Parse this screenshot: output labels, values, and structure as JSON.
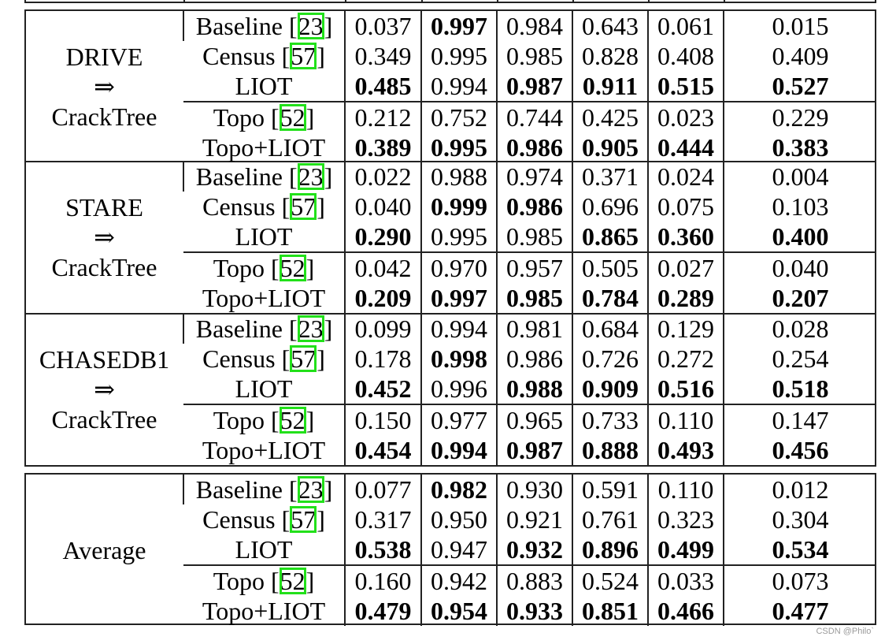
{
  "table": {
    "column_count": 8,
    "groups": [
      {
        "dataset_lines": [
          "DRIVE",
          "⇒",
          "CrackTree"
        ],
        "rows": [
          {
            "method": "Baseline",
            "cite": "23",
            "values": [
              "0.037",
              "0.997",
              "0.984",
              "0.643",
              "0.061",
              "0.015"
            ],
            "bold": [
              false,
              true,
              false,
              false,
              false,
              false
            ]
          },
          {
            "method": "Census",
            "cite": "57",
            "values": [
              "0.349",
              "0.995",
              "0.985",
              "0.828",
              "0.408",
              "0.409"
            ],
            "bold": [
              false,
              false,
              false,
              false,
              false,
              false
            ]
          },
          {
            "method": "LIOT",
            "cite": "",
            "values": [
              "0.485",
              "0.994",
              "0.987",
              "0.911",
              "0.515",
              "0.527"
            ],
            "bold": [
              true,
              false,
              true,
              true,
              true,
              true
            ]
          },
          {
            "method": "Topo",
            "cite": "52",
            "values": [
              "0.212",
              "0.752",
              "0.744",
              "0.425",
              "0.023",
              "0.229"
            ],
            "bold": [
              false,
              false,
              false,
              false,
              false,
              false
            ]
          },
          {
            "method": "Topo+LIOT",
            "cite": "",
            "values": [
              "0.389",
              "0.995",
              "0.986",
              "0.905",
              "0.444",
              "0.383"
            ],
            "bold": [
              true,
              true,
              true,
              true,
              true,
              true
            ]
          }
        ]
      },
      {
        "dataset_lines": [
          "STARE",
          "⇒",
          "CrackTree"
        ],
        "rows": [
          {
            "method": "Baseline",
            "cite": "23",
            "values": [
              "0.022",
              "0.988",
              "0.974",
              "0.371",
              "0.024",
              "0.004"
            ],
            "bold": [
              false,
              false,
              false,
              false,
              false,
              false
            ]
          },
          {
            "method": "Census",
            "cite": "57",
            "values": [
              "0.040",
              "0.999",
              "0.986",
              "0.696",
              "0.075",
              "0.103"
            ],
            "bold": [
              false,
              true,
              true,
              false,
              false,
              false
            ]
          },
          {
            "method": "LIOT",
            "cite": "",
            "values": [
              "0.290",
              "0.995",
              "0.985",
              "0.865",
              "0.360",
              "0.400"
            ],
            "bold": [
              true,
              false,
              false,
              true,
              true,
              true
            ]
          },
          {
            "method": "Topo",
            "cite": "52",
            "values": [
              "0.042",
              "0.970",
              "0.957",
              "0.505",
              "0.027",
              "0.040"
            ],
            "bold": [
              false,
              false,
              false,
              false,
              false,
              false
            ]
          },
          {
            "method": "Topo+LIOT",
            "cite": "",
            "values": [
              "0.209",
              "0.997",
              "0.985",
              "0.784",
              "0.289",
              "0.207"
            ],
            "bold": [
              true,
              true,
              true,
              true,
              true,
              true
            ]
          }
        ]
      },
      {
        "dataset_lines": [
          "CHASEDB1",
          "⇒",
          "CrackTree"
        ],
        "rows": [
          {
            "method": "Baseline",
            "cite": "23",
            "values": [
              "0.099",
              "0.994",
              "0.981",
              "0.684",
              "0.129",
              "0.028"
            ],
            "bold": [
              false,
              false,
              false,
              false,
              false,
              false
            ]
          },
          {
            "method": "Census",
            "cite": "57",
            "values": [
              "0.178",
              "0.998",
              "0.986",
              "0.726",
              "0.272",
              "0.254"
            ],
            "bold": [
              false,
              true,
              false,
              false,
              false,
              false
            ]
          },
          {
            "method": "LIOT",
            "cite": "",
            "values": [
              "0.452",
              "0.996",
              "0.988",
              "0.909",
              "0.516",
              "0.518"
            ],
            "bold": [
              true,
              false,
              true,
              true,
              true,
              true
            ]
          },
          {
            "method": "Topo",
            "cite": "52",
            "values": [
              "0.150",
              "0.977",
              "0.965",
              "0.733",
              "0.110",
              "0.147"
            ],
            "bold": [
              false,
              false,
              false,
              false,
              false,
              false
            ]
          },
          {
            "method": "Topo+LIOT",
            "cite": "",
            "values": [
              "0.454",
              "0.994",
              "0.987",
              "0.888",
              "0.493",
              "0.456"
            ],
            "bold": [
              true,
              true,
              true,
              true,
              true,
              true
            ]
          }
        ]
      },
      {
        "dataset_lines": [
          "Average"
        ],
        "rows": [
          {
            "method": "Baseline",
            "cite": "23",
            "values": [
              "0.077",
              "0.982",
              "0.930",
              "0.591",
              "0.110",
              "0.012"
            ],
            "bold": [
              false,
              true,
              false,
              false,
              false,
              false
            ]
          },
          {
            "method": "Census",
            "cite": "57",
            "values": [
              "0.317",
              "0.950",
              "0.921",
              "0.761",
              "0.323",
              "0.304"
            ],
            "bold": [
              false,
              false,
              false,
              false,
              false,
              false
            ]
          },
          {
            "method": "LIOT",
            "cite": "",
            "values": [
              "0.538",
              "0.947",
              "0.932",
              "0.896",
              "0.499",
              "0.534"
            ],
            "bold": [
              true,
              false,
              true,
              true,
              true,
              true
            ]
          },
          {
            "method": "Topo",
            "cite": "52",
            "values": [
              "0.160",
              "0.942",
              "0.883",
              "0.524",
              "0.033",
              "0.073"
            ],
            "bold": [
              false,
              false,
              false,
              false,
              false,
              false
            ]
          },
          {
            "method": "Topo+LIOT",
            "cite": "",
            "values": [
              "0.479",
              "0.954",
              "0.933",
              "0.851",
              "0.466",
              "0.477"
            ],
            "bold": [
              true,
              true,
              true,
              true,
              true,
              true
            ]
          }
        ]
      }
    ]
  },
  "watermark": "CSDN @Philo`"
}
